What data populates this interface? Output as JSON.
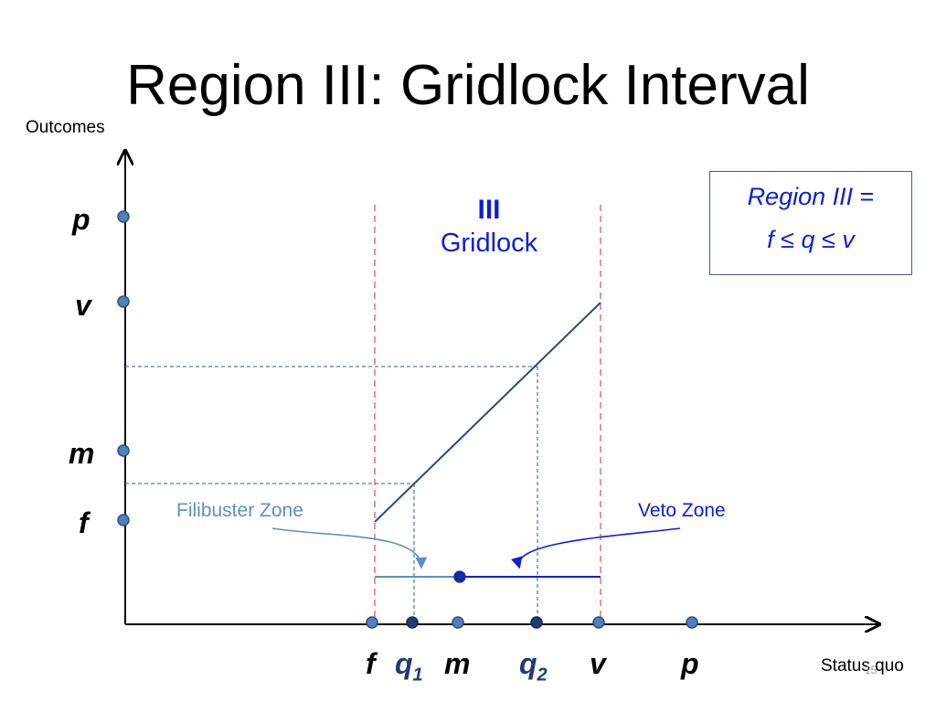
{
  "title": "Region III: Gridlock Interval",
  "axes": {
    "y_label": "Outcomes",
    "x_label": "Status quo"
  },
  "y_points": [
    "p",
    "v",
    "m",
    "f"
  ],
  "x_points": [
    "f",
    "m",
    "v",
    "p"
  ],
  "q1": {
    "base": "q",
    "sub": "1"
  },
  "q2": {
    "base": "q",
    "sub": "2"
  },
  "region": {
    "numeral": "III",
    "name": "Gridlock"
  },
  "definition": {
    "line1_italic": "Region III",
    "line1_rest": " =",
    "line2": "f ≤ q ≤ v"
  },
  "zones": {
    "filibuster": "Filibuster Zone",
    "veto": "Veto Zone"
  },
  "slide_number": "15",
  "colors": {
    "dot": "#4f7fbf",
    "dot_dark": "#1f3b73",
    "line": "#1f4e86",
    "reference_red": "#e06666",
    "blue_text": "#0b1fd6",
    "light_blue": "#5b8fc7"
  }
}
